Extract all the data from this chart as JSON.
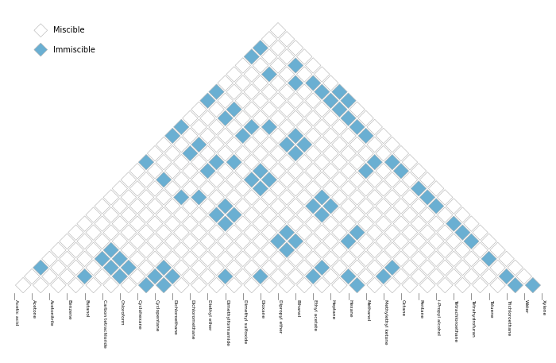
{
  "solvents": [
    "Acetic acid",
    "Acetone",
    "Acetonitrile",
    "Benzene",
    "Butanol",
    "Carbon tetrachloride",
    "Chloroform",
    "Cyclohexane",
    "Cyclopentane",
    "Dichloroethane",
    "Dichloromethane",
    "Diethyl ether",
    "Dimethylformamide",
    "Dimethyl sulfoxide",
    "Dioxane",
    "Dipropyl ether",
    "Ethanol",
    "Ethyl acetate",
    "Heptane",
    "Hexane",
    "Methanol",
    "Methylethyl ketone",
    "Octane",
    "Pentane",
    "i-Propyl alcohol",
    "Tetrachloroethane",
    "Tetrahydrofuran",
    "Toluene",
    "Trichloroethane",
    "Water",
    "Xylene"
  ],
  "immiscible_pairs": [
    [
      3,
      0
    ],
    [
      5,
      3
    ],
    [
      7,
      3
    ],
    [
      7,
      4
    ],
    [
      7,
      5
    ],
    [
      8,
      3
    ],
    [
      8,
      4
    ],
    [
      8,
      5
    ],
    [
      8,
      7
    ],
    [
      9,
      7
    ],
    [
      9,
      8
    ],
    [
      10,
      7
    ],
    [
      10,
      8
    ],
    [
      11,
      13
    ],
    [
      13,
      11
    ],
    [
      15,
      0
    ],
    [
      15,
      2
    ],
    [
      15,
      4
    ],
    [
      15,
      13
    ],
    [
      16,
      5
    ],
    [
      16,
      7
    ],
    [
      16,
      8
    ],
    [
      17,
      7
    ],
    [
      17,
      8
    ],
    [
      18,
      0
    ],
    [
      18,
      2
    ],
    [
      18,
      4
    ],
    [
      18,
      12
    ],
    [
      18,
      13
    ],
    [
      18,
      16
    ],
    [
      18,
      20
    ],
    [
      19,
      0
    ],
    [
      19,
      2
    ],
    [
      19,
      4
    ],
    [
      19,
      12
    ],
    [
      19,
      13
    ],
    [
      19,
      16
    ],
    [
      19,
      20
    ],
    [
      20,
      5
    ],
    [
      20,
      7
    ],
    [
      20,
      8
    ],
    [
      21,
      7
    ],
    [
      21,
      8
    ],
    [
      22,
      0
    ],
    [
      22,
      2
    ],
    [
      22,
      4
    ],
    [
      22,
      12
    ],
    [
      22,
      13
    ],
    [
      22,
      16
    ],
    [
      22,
      20
    ],
    [
      23,
      0
    ],
    [
      23,
      2
    ],
    [
      23,
      4
    ],
    [
      23,
      12
    ],
    [
      23,
      13
    ],
    [
      23,
      16
    ],
    [
      23,
      20
    ],
    [
      24,
      5
    ],
    [
      24,
      7
    ],
    [
      24,
      8
    ],
    [
      25,
      7
    ],
    [
      25,
      8
    ],
    [
      27,
      0
    ],
    [
      27,
      2
    ],
    [
      27,
      13
    ],
    [
      28,
      0
    ],
    [
      28,
      4
    ],
    [
      28,
      13
    ],
    [
      29,
      3
    ],
    [
      29,
      5
    ],
    [
      29,
      6
    ],
    [
      29,
      7
    ],
    [
      29,
      8
    ],
    [
      29,
      9
    ],
    [
      29,
      10
    ],
    [
      29,
      11
    ],
    [
      29,
      14
    ],
    [
      29,
      15
    ],
    [
      29,
      17
    ],
    [
      29,
      18
    ],
    [
      29,
      19
    ],
    [
      29,
      21
    ],
    [
      29,
      22
    ],
    [
      29,
      23
    ],
    [
      29,
      25
    ],
    [
      29,
      27
    ],
    [
      29,
      28
    ],
    [
      30,
      7
    ],
    [
      30,
      8
    ],
    [
      30,
      29
    ]
  ],
  "misc_color": "white",
  "immis_color": "#6aafd2",
  "edge_color": "#b0b0b0",
  "background_color": "white",
  "legend_misc_label": "Miscible",
  "legend_immis_label": "Immiscible"
}
